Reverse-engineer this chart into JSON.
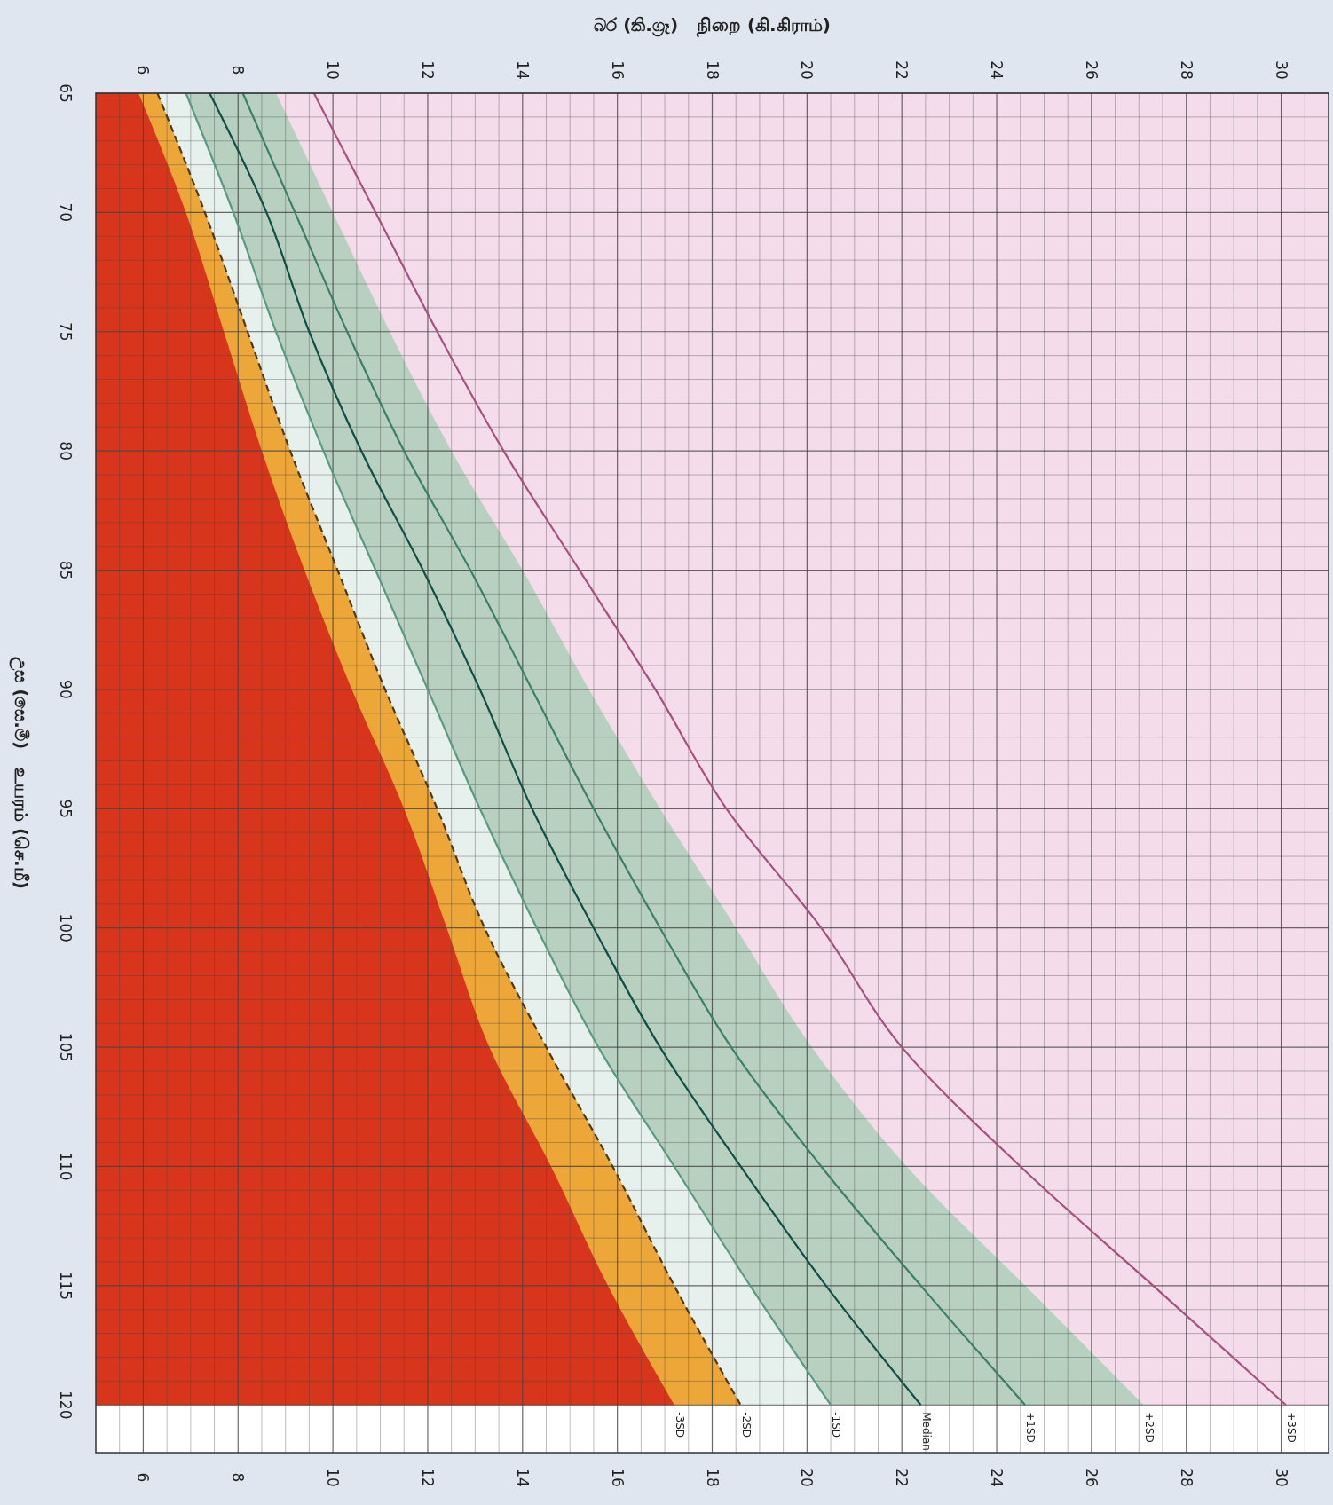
{
  "chart_data": {
    "type": "line",
    "orientation": "horizontal",
    "xlabel": "බර (කි.ග්‍රෑ)   நிறை (கி.கிராம்)",
    "ylabel": "උස (සෙ.මී)   உயரம் (செ.மீ)",
    "x": [
      65,
      70,
      75,
      80,
      85,
      90,
      95,
      100,
      105,
      110,
      115,
      120
    ],
    "series": [
      {
        "type": "area",
        "name": "+2SD",
        "color": "#b7d0bf",
        "values": [
          8.8,
          10.0,
          11.2,
          12.5,
          14.0,
          15.4,
          16.9,
          18.5,
          20.1,
          22.1,
          24.6,
          27.1
        ]
      },
      {
        "name": "-1SD",
        "color": "#5a9a82",
        "values": [
          6.9,
          7.9,
          8.8,
          9.8,
          10.9,
          12.0,
          13.1,
          14.3,
          15.6,
          17.2,
          18.8,
          20.5
        ],
        "lower": [
          6.3,
          7.3,
          8.2,
          9.1,
          10.1,
          11.1,
          12.2,
          13.2,
          14.5,
          15.9,
          17.2,
          18.6
        ],
        "upper": [
          6.9,
          7.9,
          8.8,
          9.8,
          10.9,
          12.0,
          13.1,
          14.3,
          15.6,
          17.2,
          18.8,
          20.5
        ]
      },
      {
        "type": "area",
        "name": "-2SD",
        "color": "#eda638",
        "line_style": "dashed",
        "values": [
          6.3,
          7.3,
          8.2,
          9.1,
          10.1,
          11.1,
          12.2,
          13.2,
          14.5,
          15.9,
          17.2,
          18.6
        ]
      },
      {
        "type": "area",
        "name": "-3SD",
        "color": "#d8361c",
        "values": [
          5.9,
          6.9,
          7.7,
          8.5,
          9.4,
          10.4,
          11.5,
          12.4,
          13.3,
          14.6,
          15.8,
          17.2
        ]
      },
      {
        "name": "Median",
        "color": "#0f4f45",
        "values": [
          7.4,
          8.6,
          9.5,
          10.6,
          11.9,
          13.1,
          14.2,
          15.5,
          16.9,
          18.6,
          20.4,
          22.4
        ]
      },
      {
        "name": "+1SD",
        "color": "#3c7f68",
        "values": [
          8.1,
          9.2,
          10.3,
          11.5,
          12.9,
          14.2,
          15.5,
          16.9,
          18.4,
          20.3,
          22.4,
          24.6
        ]
      },
      {
        "name": "+3SD",
        "color": "#a5507f",
        "values": [
          9.6,
          10.9,
          12.2,
          13.6,
          15.2,
          16.8,
          18.3,
          20.3,
          22.0,
          24.5,
          27.3,
          30.1
        ]
      }
    ],
    "bands": [
      {
        "axis": "y",
        "from": 65,
        "to": 120,
        "color": "#f4dcea"
      }
    ],
    "xlim": [
      5,
      31
    ],
    "xticks": [
      {
        "value": 5.5,
        "label": null
      },
      6,
      {
        "value": 6.5,
        "label": null
      },
      {
        "value": 7,
        "label": null
      },
      {
        "value": 7.5,
        "label": null
      },
      8,
      {
        "value": 8.5,
        "label": null
      },
      {
        "value": 9,
        "label": null
      },
      {
        "value": 9.5,
        "label": null
      },
      10,
      {
        "value": 10.5,
        "label": null
      },
      {
        "value": 11,
        "label": null
      },
      {
        "value": 11.5,
        "label": null
      },
      12,
      {
        "value": 12.5,
        "label": null
      },
      {
        "value": 13,
        "label": null
      },
      {
        "value": 13.5,
        "label": null
      },
      14,
      {
        "value": 14.5,
        "label": null
      },
      {
        "value": 15,
        "label": null
      },
      {
        "value": 15.5,
        "label": null
      },
      16,
      {
        "value": 16.5,
        "label": null
      },
      {
        "value": 17,
        "label": null
      },
      {
        "value": 17.5,
        "label": null
      },
      18,
      {
        "value": 18.5,
        "label": null
      },
      {
        "value": 19,
        "label": null
      },
      {
        "value": 19.5,
        "label": null
      },
      20,
      {
        "value": 20.5,
        "label": null
      },
      {
        "value": 21,
        "label": null
      },
      {
        "value": 21.5,
        "label": null
      },
      22,
      {
        "value": 22.5,
        "label": null
      },
      {
        "value": 23,
        "label": null
      },
      {
        "value": 23.5,
        "label": null
      },
      24,
      {
        "value": 24.5,
        "label": null
      },
      {
        "value": 25,
        "label": null
      },
      {
        "value": 25.5,
        "label": null
      },
      26,
      {
        "value": 26.5,
        "label": null
      },
      {
        "value": 27,
        "label": null
      },
      {
        "value": 27.5,
        "label": null
      },
      28,
      {
        "value": 28.5,
        "label": null
      },
      {
        "value": 29,
        "label": null
      },
      {
        "value": 29.5,
        "label": null
      },
      30,
      {
        "value": 30.5,
        "label": null
      }
    ],
    "x2lim": [
      5,
      31
    ],
    "x2ticks": [
      6,
      8,
      10,
      12,
      14,
      16,
      18,
      20,
      22,
      24,
      26,
      28,
      30
    ],
    "ylim": [
      122,
      65
    ],
    "yticks": [
      65,
      {
        "value": 66,
        "label": null
      },
      {
        "value": 67,
        "label": null
      },
      {
        "value": 68,
        "label": null
      },
      {
        "value": 69,
        "label": null
      },
      70,
      {
        "value": 71,
        "label": null
      },
      {
        "value": 72,
        "label": null
      },
      {
        "value": 73,
        "label": null
      },
      {
        "value": 74,
        "label": null
      },
      75,
      {
        "value": 76,
        "label": null
      },
      {
        "value": 77,
        "label": null
      },
      {
        "value": 78,
        "label": null
      },
      {
        "value": 79,
        "label": null
      },
      80,
      {
        "value": 81,
        "label": null
      },
      {
        "value": 82,
        "label": null
      },
      {
        "value": 83,
        "label": null
      },
      {
        "value": 84,
        "label": null
      },
      85,
      {
        "value": 86,
        "label": null
      },
      {
        "value": 87,
        "label": null
      },
      {
        "value": 88,
        "label": null
      },
      {
        "value": 89,
        "label": null
      },
      90,
      {
        "value": 91,
        "label": null
      },
      {
        "value": 92,
        "label": null
      },
      {
        "value": 93,
        "label": null
      },
      {
        "value": 94,
        "label": null
      },
      95,
      {
        "value": 96,
        "label": null
      },
      {
        "value": 97,
        "label": null
      },
      {
        "value": 98,
        "label": null
      },
      {
        "value": 99,
        "label": null
      },
      100,
      {
        "value": 101,
        "label": null
      },
      {
        "value": 102,
        "label": null
      },
      {
        "value": 103,
        "label": null
      },
      {
        "value": 104,
        "label": null
      },
      105,
      {
        "value": 106,
        "label": null
      },
      {
        "value": 107,
        "label": null
      },
      {
        "value": 108,
        "label": null
      },
      {
        "value": 109,
        "label": null
      },
      110,
      {
        "value": 111,
        "label": null
      },
      {
        "value": 112,
        "label": null
      },
      {
        "value": 113,
        "label": null
      },
      {
        "value": 114,
        "label": null
      },
      115,
      {
        "value": 116,
        "label": null
      },
      {
        "value": 117,
        "label": null
      },
      {
        "value": 118,
        "label": null
      },
      {
        "value": 119,
        "label": null
      },
      120
    ],
    "grid": true
  }
}
